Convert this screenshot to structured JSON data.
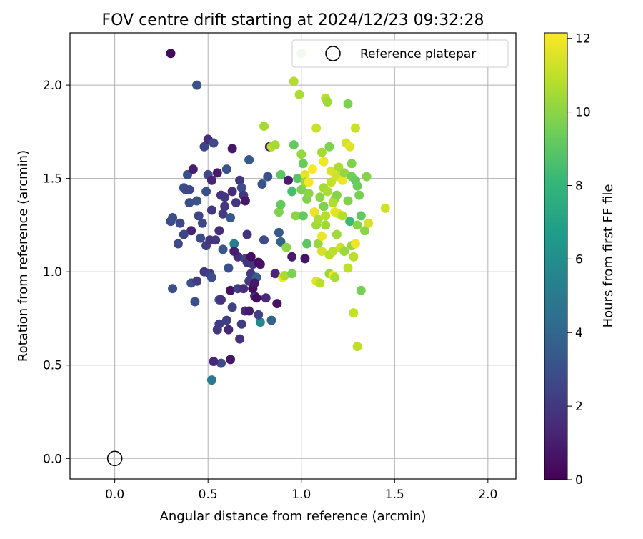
{
  "chart_data": {
    "type": "scatter",
    "title": "FOV centre drift starting at 2024/12/23 09:32:28",
    "xlabel": "Angular distance from reference (arcmin)",
    "ylabel": "Rotation from reference (arcmin)",
    "xlim": [
      -0.24,
      2.15
    ],
    "ylim": [
      -0.11,
      2.28
    ],
    "xticks": [
      0.0,
      0.5,
      1.0,
      1.5,
      2.0
    ],
    "xtick_labels": [
      "0.0",
      "0.5",
      "1.0",
      "1.5",
      "2.0"
    ],
    "yticks": [
      0.0,
      0.5,
      1.0,
      1.5,
      2.0
    ],
    "ytick_labels": [
      "0.0",
      "0.5",
      "1.0",
      "1.5",
      "2.0"
    ],
    "grid": true,
    "legend": {
      "position": "top-right",
      "entries": [
        {
          "label": "Reference platepar",
          "marker": "open-circle"
        }
      ]
    },
    "reference_point": {
      "x": 0.0,
      "y": 0.0
    },
    "colorbar": {
      "label": "Hours from first FF file",
      "range": [
        0,
        12.15
      ],
      "ticks": [
        0,
        2,
        4,
        6,
        8,
        10,
        12
      ],
      "tick_labels": [
        "0",
        "2",
        "4",
        "6",
        "8",
        "10",
        "12"
      ],
      "colormap": "viridis",
      "colormap_stops": [
        "#440154",
        "#482878",
        "#3e4989",
        "#31688e",
        "#26828e",
        "#1f9e89",
        "#35b779",
        "#6ece58",
        "#b5de2b",
        "#fde725"
      ]
    },
    "points": [
      {
        "x": 0.3,
        "y": 2.17,
        "c": 0.3
      },
      {
        "x": 0.44,
        "y": 2.0,
        "c": 3.2
      },
      {
        "x": 0.3,
        "y": 1.27,
        "c": 2.7
      },
      {
        "x": 0.34,
        "y": 1.15,
        "c": 2.7
      },
      {
        "x": 0.37,
        "y": 1.45,
        "c": 3.0
      },
      {
        "x": 0.38,
        "y": 1.44,
        "c": 2.7
      },
      {
        "x": 0.39,
        "y": 1.52,
        "c": 3.0
      },
      {
        "x": 0.4,
        "y": 1.37,
        "c": 2.9
      },
      {
        "x": 0.41,
        "y": 1.22,
        "c": 1.2
      },
      {
        "x": 0.42,
        "y": 1.55,
        "c": 1.0
      },
      {
        "x": 0.43,
        "y": 0.84,
        "c": 3.0
      },
      {
        "x": 0.44,
        "y": 1.38,
        "c": 3.1
      },
      {
        "x": 0.45,
        "y": 1.3,
        "c": 2.5
      },
      {
        "x": 0.46,
        "y": 1.18,
        "c": 2.8
      },
      {
        "x": 0.48,
        "y": 1.67,
        "c": 2.5
      },
      {
        "x": 0.49,
        "y": 1.43,
        "c": 3.0
      },
      {
        "x": 0.5,
        "y": 1.71,
        "c": 1.5
      },
      {
        "x": 0.5,
        "y": 1.52,
        "c": 2.8
      },
      {
        "x": 0.52,
        "y": 1.49,
        "c": 1.2
      },
      {
        "x": 0.52,
        "y": 1.33,
        "c": 2.0
      },
      {
        "x": 0.53,
        "y": 1.69,
        "c": 2.7
      },
      {
        "x": 0.54,
        "y": 1.17,
        "c": 2.0
      },
      {
        "x": 0.55,
        "y": 1.53,
        "c": 0.9
      },
      {
        "x": 0.56,
        "y": 1.22,
        "c": 1.5
      },
      {
        "x": 0.57,
        "y": 1.41,
        "c": 1.7
      },
      {
        "x": 0.58,
        "y": 1.31,
        "c": 2.2
      },
      {
        "x": 0.59,
        "y": 1.35,
        "c": 2.0
      },
      {
        "x": 0.6,
        "y": 1.55,
        "c": 3.1
      },
      {
        "x": 0.61,
        "y": 1.02,
        "c": 3.0
      },
      {
        "x": 0.62,
        "y": 1.29,
        "c": 3.3
      },
      {
        "x": 0.63,
        "y": 1.43,
        "c": 1.5
      },
      {
        "x": 0.63,
        "y": 1.66,
        "c": 0.8
      },
      {
        "x": 0.64,
        "y": 1.15,
        "c": 5.2
      },
      {
        "x": 0.65,
        "y": 1.37,
        "c": 1.9
      },
      {
        "x": 0.66,
        "y": 1.08,
        "c": 1.5
      },
      {
        "x": 0.67,
        "y": 1.49,
        "c": 1.9
      },
      {
        "x": 0.68,
        "y": 1.45,
        "c": 2.9
      },
      {
        "x": 0.69,
        "y": 1.41,
        "c": 2.0
      },
      {
        "x": 0.7,
        "y": 1.38,
        "c": 0.8
      },
      {
        "x": 0.7,
        "y": 1.07,
        "c": 2.5
      },
      {
        "x": 0.71,
        "y": 1.2,
        "c": 1.8
      },
      {
        "x": 0.72,
        "y": 1.6,
        "c": 3.3
      },
      {
        "x": 0.72,
        "y": 0.95,
        "c": 2.2
      },
      {
        "x": 0.73,
        "y": 0.99,
        "c": 2.0
      },
      {
        "x": 0.74,
        "y": 1.04,
        "c": 2.0
      },
      {
        "x": 0.75,
        "y": 0.87,
        "c": 1.8
      },
      {
        "x": 0.76,
        "y": 0.97,
        "c": 3.6
      },
      {
        "x": 0.77,
        "y": 1.05,
        "c": 0.4
      },
      {
        "x": 0.78,
        "y": 0.73,
        "c": 5.7
      },
      {
        "x": 0.79,
        "y": 1.47,
        "c": 3.2
      },
      {
        "x": 0.8,
        "y": 1.17,
        "c": 2.8
      },
      {
        "x": 0.82,
        "y": 1.51,
        "c": 3.1
      },
      {
        "x": 0.83,
        "y": 1.67,
        "c": 0.6
      },
      {
        "x": 0.84,
        "y": 0.74,
        "c": 3.8
      },
      {
        "x": 0.86,
        "y": 0.99,
        "c": 1.3
      },
      {
        "x": 0.87,
        "y": 0.83,
        "c": 0.6
      },
      {
        "x": 0.88,
        "y": 1.21,
        "c": 3.4
      },
      {
        "x": 0.89,
        "y": 1.16,
        "c": 3.8
      },
      {
        "x": 0.93,
        "y": 1.49,
        "c": 1.0
      },
      {
        "x": 0.95,
        "y": 1.08,
        "c": 0.9
      },
      {
        "x": 1.02,
        "y": 1.07,
        "c": 0.6
      },
      {
        "x": 0.31,
        "y": 1.29,
        "c": 3.0
      },
      {
        "x": 0.31,
        "y": 0.91,
        "c": 3.0
      },
      {
        "x": 0.35,
        "y": 1.26,
        "c": 2.6
      },
      {
        "x": 0.37,
        "y": 1.2,
        "c": 2.5
      },
      {
        "x": 0.4,
        "y": 1.44,
        "c": 2.6
      },
      {
        "x": 0.41,
        "y": 0.94,
        "c": 3.1
      },
      {
        "x": 0.44,
        "y": 0.95,
        "c": 2.2
      },
      {
        "x": 0.47,
        "y": 1.26,
        "c": 2.6
      },
      {
        "x": 0.48,
        "y": 1.0,
        "c": 2.1
      },
      {
        "x": 0.49,
        "y": 1.14,
        "c": 2.3
      },
      {
        "x": 0.51,
        "y": 0.99,
        "c": 2.3
      },
      {
        "x": 0.51,
        "y": 1.17,
        "c": 1.8
      },
      {
        "x": 0.52,
        "y": 0.97,
        "c": 3.0
      },
      {
        "x": 0.55,
        "y": 0.69,
        "c": 2.0
      },
      {
        "x": 0.56,
        "y": 0.72,
        "c": 2.2
      },
      {
        "x": 0.56,
        "y": 0.85,
        "c": 3.3
      },
      {
        "x": 0.57,
        "y": 0.51,
        "c": 2.8
      },
      {
        "x": 0.58,
        "y": 1.12,
        "c": 3.3
      },
      {
        "x": 0.59,
        "y": 1.4,
        "c": 2.0
      },
      {
        "x": 0.6,
        "y": 0.74,
        "c": 2.3
      },
      {
        "x": 0.61,
        "y": 0.69,
        "c": 1.4
      },
      {
        "x": 0.62,
        "y": 0.53,
        "c": 0.7
      },
      {
        "x": 0.62,
        "y": 0.9,
        "c": 0.6
      },
      {
        "x": 0.63,
        "y": 0.81,
        "c": 2.4
      },
      {
        "x": 0.64,
        "y": 1.11,
        "c": 1.0
      },
      {
        "x": 0.66,
        "y": 0.91,
        "c": 2.3
      },
      {
        "x": 0.67,
        "y": 0.64,
        "c": 1.7
      },
      {
        "x": 0.68,
        "y": 0.72,
        "c": 2.2
      },
      {
        "x": 0.69,
        "y": 0.91,
        "c": 1.6
      },
      {
        "x": 0.7,
        "y": 0.79,
        "c": 1.5
      },
      {
        "x": 0.71,
        "y": 1.05,
        "c": 1.9
      },
      {
        "x": 0.72,
        "y": 0.79,
        "c": 0.9
      },
      {
        "x": 0.73,
        "y": 1.08,
        "c": 0.5
      },
      {
        "x": 0.74,
        "y": 0.91,
        "c": 0.4
      },
      {
        "x": 0.75,
        "y": 0.94,
        "c": 0.8
      },
      {
        "x": 0.76,
        "y": 0.86,
        "c": 0.4
      },
      {
        "x": 0.77,
        "y": 0.77,
        "c": 2.4
      },
      {
        "x": 0.78,
        "y": 1.04,
        "c": 0.6
      },
      {
        "x": 0.81,
        "y": 0.86,
        "c": 1.4
      },
      {
        "x": 0.52,
        "y": 0.42,
        "c": 5.0
      },
      {
        "x": 0.53,
        "y": 0.52,
        "c": 1.4
      },
      {
        "x": 0.57,
        "y": 0.85,
        "c": 1.8
      },
      {
        "x": 0.8,
        "y": 1.78,
        "c": 10.5
      },
      {
        "x": 0.84,
        "y": 1.67,
        "c": 10.8
      },
      {
        "x": 0.86,
        "y": 1.68,
        "c": 10.5
      },
      {
        "x": 0.88,
        "y": 1.32,
        "c": 9.8
      },
      {
        "x": 0.89,
        "y": 1.36,
        "c": 9.2
      },
      {
        "x": 0.89,
        "y": 1.52,
        "c": 9.0
      },
      {
        "x": 0.9,
        "y": 0.97,
        "c": 12.0
      },
      {
        "x": 0.91,
        "y": 0.98,
        "c": 10.6
      },
      {
        "x": 0.92,
        "y": 1.13,
        "c": 10.0
      },
      {
        "x": 0.95,
        "y": 1.43,
        "c": 8.5
      },
      {
        "x": 0.95,
        "y": 0.99,
        "c": 9.7
      },
      {
        "x": 0.96,
        "y": 1.68,
        "c": 9.2
      },
      {
        "x": 0.96,
        "y": 2.02,
        "c": 10.8
      },
      {
        "x": 0.97,
        "y": 1.3,
        "c": 10.0
      },
      {
        "x": 0.98,
        "y": 1.5,
        "c": 8.9
      },
      {
        "x": 0.99,
        "y": 1.95,
        "c": 10.6
      },
      {
        "x": 1.0,
        "y": 1.63,
        "c": 10.2
      },
      {
        "x": 1.0,
        "y": 1.44,
        "c": 9.7
      },
      {
        "x": 1.0,
        "y": 2.17,
        "c": 9.2
      },
      {
        "x": 1.01,
        "y": 1.58,
        "c": 9.3
      },
      {
        "x": 1.01,
        "y": 1.3,
        "c": 9.2
      },
      {
        "x": 1.02,
        "y": 1.52,
        "c": 11.7
      },
      {
        "x": 1.02,
        "y": 1.48,
        "c": 10.3
      },
      {
        "x": 1.03,
        "y": 1.15,
        "c": 9.0
      },
      {
        "x": 1.03,
        "y": 1.39,
        "c": 9.8
      },
      {
        "x": 1.04,
        "y": 1.48,
        "c": 12.0
      },
      {
        "x": 1.04,
        "y": 1.42,
        "c": 10.0
      },
      {
        "x": 1.06,
        "y": 1.55,
        "c": 12.1
      },
      {
        "x": 1.07,
        "y": 1.32,
        "c": 11.8
      },
      {
        "x": 1.08,
        "y": 1.77,
        "c": 11.2
      },
      {
        "x": 1.08,
        "y": 1.25,
        "c": 10.4
      },
      {
        "x": 1.08,
        "y": 0.95,
        "c": 11.6
      },
      {
        "x": 1.09,
        "y": 1.28,
        "c": 10.6
      },
      {
        "x": 1.09,
        "y": 1.15,
        "c": 10.2
      },
      {
        "x": 1.1,
        "y": 1.4,
        "c": 10.0
      },
      {
        "x": 1.1,
        "y": 0.94,
        "c": 10.9
      },
      {
        "x": 1.11,
        "y": 1.64,
        "c": 10.5
      },
      {
        "x": 1.11,
        "y": 1.11,
        "c": 11.4
      },
      {
        "x": 1.11,
        "y": 1.19,
        "c": 11.8
      },
      {
        "x": 1.12,
        "y": 1.35,
        "c": 9.8
      },
      {
        "x": 1.12,
        "y": 1.45,
        "c": 10.5
      },
      {
        "x": 1.12,
        "y": 1.59,
        "c": 11.9
      },
      {
        "x": 1.13,
        "y": 1.93,
        "c": 10.8
      },
      {
        "x": 1.13,
        "y": 1.3,
        "c": 10.8
      },
      {
        "x": 1.13,
        "y": 1.25,
        "c": 10.3
      },
      {
        "x": 1.14,
        "y": 1.91,
        "c": 10.4
      },
      {
        "x": 1.14,
        "y": 1.43,
        "c": 10.6
      },
      {
        "x": 1.15,
        "y": 1.67,
        "c": 9.7
      },
      {
        "x": 1.15,
        "y": 1.09,
        "c": 10.9
      },
      {
        "x": 1.15,
        "y": 0.99,
        "c": 10.2
      },
      {
        "x": 1.16,
        "y": 1.48,
        "c": 11.1
      },
      {
        "x": 1.16,
        "y": 1.54,
        "c": 11.5
      },
      {
        "x": 1.17,
        "y": 1.11,
        "c": 10.9
      },
      {
        "x": 1.17,
        "y": 0.98,
        "c": 11.9
      },
      {
        "x": 1.18,
        "y": 1.39,
        "c": 10.2
      },
      {
        "x": 1.18,
        "y": 1.32,
        "c": 11.7
      },
      {
        "x": 1.18,
        "y": 0.97,
        "c": 10.6
      },
      {
        "x": 1.19,
        "y": 1.51,
        "c": 11.3
      },
      {
        "x": 1.19,
        "y": 1.41,
        "c": 9.9
      },
      {
        "x": 1.19,
        "y": 1.2,
        "c": 10.4
      },
      {
        "x": 1.2,
        "y": 1.56,
        "c": 10.6
      },
      {
        "x": 1.2,
        "y": 1.31,
        "c": 11.6
      },
      {
        "x": 1.21,
        "y": 1.13,
        "c": 11.2
      },
      {
        "x": 1.22,
        "y": 1.49,
        "c": 11.8
      },
      {
        "x": 1.22,
        "y": 1.3,
        "c": 10.8
      },
      {
        "x": 1.23,
        "y": 1.53,
        "c": 10.2
      },
      {
        "x": 1.23,
        "y": 1.11,
        "c": 10.3
      },
      {
        "x": 1.24,
        "y": 1.69,
        "c": 11.4
      },
      {
        "x": 1.25,
        "y": 1.02,
        "c": 11.0
      },
      {
        "x": 1.25,
        "y": 1.38,
        "c": 9.8
      },
      {
        "x": 1.25,
        "y": 1.9,
        "c": 9.7
      },
      {
        "x": 1.26,
        "y": 1.27,
        "c": 8.2
      },
      {
        "x": 1.26,
        "y": 1.67,
        "c": 11.6
      },
      {
        "x": 1.27,
        "y": 1.51,
        "c": 9.5
      },
      {
        "x": 1.27,
        "y": 1.58,
        "c": 9.8
      },
      {
        "x": 1.27,
        "y": 1.14,
        "c": 10.2
      },
      {
        "x": 1.28,
        "y": 1.08,
        "c": 10.9
      },
      {
        "x": 1.28,
        "y": 0.78,
        "c": 11.1
      },
      {
        "x": 1.29,
        "y": 1.77,
        "c": 11.2
      },
      {
        "x": 1.29,
        "y": 1.15,
        "c": 11.9
      },
      {
        "x": 1.29,
        "y": 1.49,
        "c": 9.3
      },
      {
        "x": 1.3,
        "y": 1.46,
        "c": 9.4
      },
      {
        "x": 1.3,
        "y": 1.25,
        "c": 9.9
      },
      {
        "x": 1.3,
        "y": 0.6,
        "c": 11.0
      },
      {
        "x": 1.31,
        "y": 1.41,
        "c": 9.6
      },
      {
        "x": 1.32,
        "y": 1.3,
        "c": 9.2
      },
      {
        "x": 1.32,
        "y": 0.9,
        "c": 9.6
      },
      {
        "x": 1.34,
        "y": 1.22,
        "c": 10.0
      },
      {
        "x": 1.35,
        "y": 1.51,
        "c": 9.9
      },
      {
        "x": 1.36,
        "y": 1.26,
        "c": 11.4
      },
      {
        "x": 1.45,
        "y": 1.34,
        "c": 11.3
      },
      {
        "x": 1.17,
        "y": 1.37,
        "c": 10.7
      }
    ]
  }
}
